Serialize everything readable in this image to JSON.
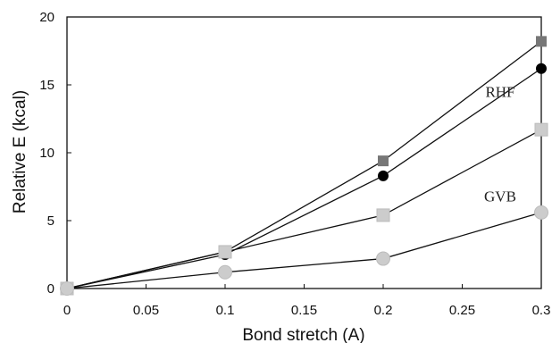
{
  "chart_data": {
    "type": "line",
    "xlabel": "Bond stretch (A)",
    "ylabel": "Relative E (kcal)",
    "xlim": [
      0,
      0.3
    ],
    "ylim": [
      0,
      20
    ],
    "xticks": [
      "0",
      "0.05",
      "0.1",
      "0.15",
      "0.2",
      "0.25",
      "0.3"
    ],
    "yticks": [
      "0",
      "5",
      "10",
      "15",
      "20"
    ],
    "x": [
      0,
      0.1,
      0.2,
      0.3
    ],
    "grid": false,
    "series": [
      {
        "values": [
          0,
          2.7,
          9.4,
          18.2
        ],
        "marker": "square",
        "color": "#777777"
      },
      {
        "values": [
          0,
          2.5,
          8.3,
          16.2
        ],
        "marker": "circle",
        "color": "#000000"
      },
      {
        "values": [
          0,
          2.7,
          5.4,
          11.7
        ],
        "marker": "square",
        "color": "#cccccc"
      },
      {
        "values": [
          0,
          1.2,
          2.2,
          5.6
        ],
        "marker": "circle",
        "color": "#cccccc"
      }
    ],
    "annotations": [
      {
        "text": "RHF",
        "x": 0.274,
        "y": 14.1
      },
      {
        "text": "GVB",
        "x": 0.274,
        "y": 6.4
      }
    ]
  }
}
